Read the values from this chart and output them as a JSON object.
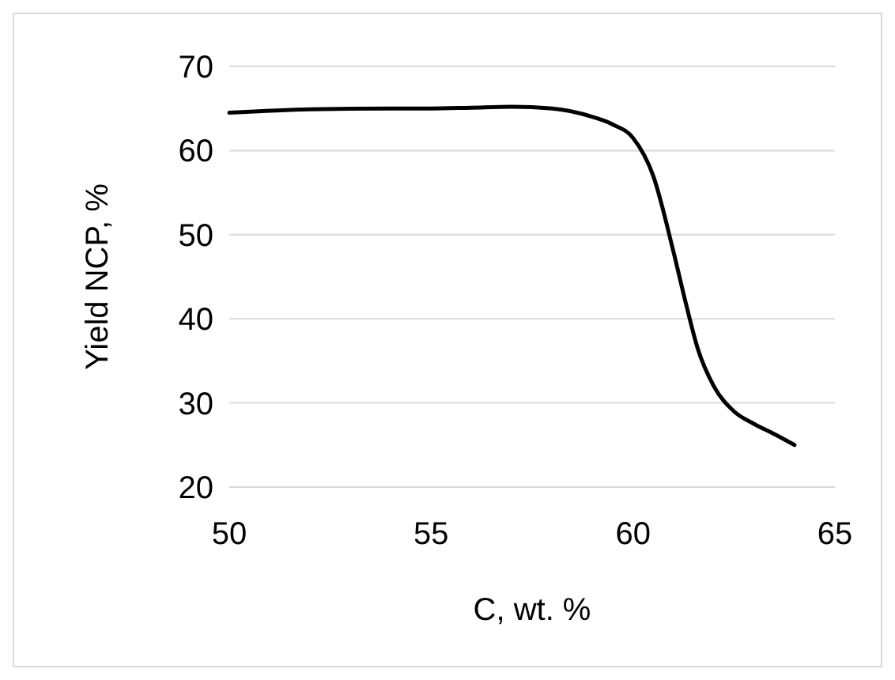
{
  "chart_data": {
    "type": "line",
    "xlabel": "C, wt. %",
    "ylabel": "Yield NCP, %",
    "x": [
      50,
      52,
      54,
      55,
      56,
      57,
      58,
      59,
      59.5,
      60,
      60.5,
      61,
      61.3,
      61.6,
      62,
      62.5,
      63,
      63.5,
      64
    ],
    "series": [
      {
        "color": "#000000",
        "values": [
          64.5,
          64.9,
          65,
          65,
          65.1,
          65.2,
          65,
          64,
          63.1,
          61.5,
          57,
          48,
          42,
          36.5,
          32,
          29,
          27.5,
          26.3,
          25
        ]
      }
    ],
    "xlim": [
      50,
      65
    ],
    "xticks": [
      50,
      55,
      60,
      65
    ],
    "ylim": [
      20,
      70
    ],
    "yticks": [
      20,
      30,
      40,
      50,
      60,
      70
    ],
    "grid": "y",
    "marker": "none",
    "line_style": "solid"
  }
}
